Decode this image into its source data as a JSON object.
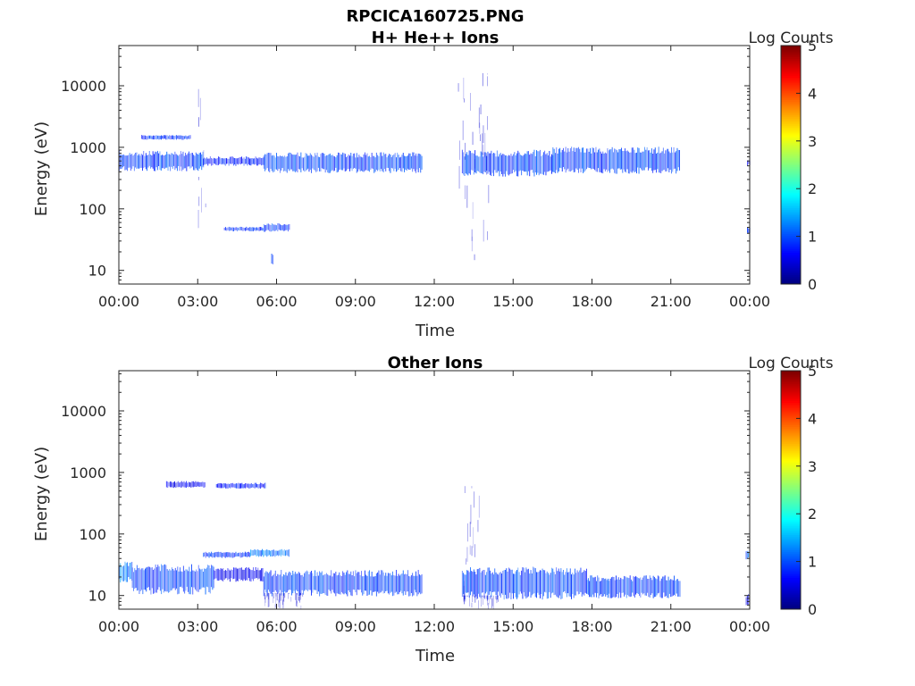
{
  "figure": {
    "title": "RPCICA160725.PNG"
  },
  "chart_data": [
    {
      "type": "heatmap",
      "title": "H+ He++ Ions",
      "xlabel": "Time",
      "ylabel": "Energy (eV)",
      "xticks": [
        "00:00",
        "03:00",
        "06:00",
        "09:00",
        "12:00",
        "15:00",
        "18:00",
        "21:00",
        "00:00"
      ],
      "xlim_hours": [
        0,
        24
      ],
      "yscale": "log",
      "ylim": [
        6,
        45000
      ],
      "yticks": [
        10,
        100,
        1000,
        10000
      ],
      "ytick_labels": [
        "10",
        "100",
        "1000",
        "10000"
      ],
      "colorbar": {
        "label": "Log Counts",
        "range": [
          0,
          5
        ],
        "ticks": [
          "0",
          "1",
          "2",
          "3",
          "4",
          "5"
        ],
        "colormap": "jet"
      },
      "bands": [
        {
          "t0": 0.0,
          "t1": 3.2,
          "elo": 450,
          "ehi": 800,
          "level": 1.0
        },
        {
          "t0": 3.2,
          "t1": 5.5,
          "elo": 520,
          "ehi": 680,
          "level": 0.8
        },
        {
          "t0": 5.5,
          "t1": 11.55,
          "elo": 420,
          "ehi": 750,
          "level": 1.0
        },
        {
          "t0": 13.05,
          "t1": 16.5,
          "elo": 380,
          "ehi": 800,
          "level": 1.0
        },
        {
          "t0": 16.5,
          "t1": 21.35,
          "elo": 420,
          "ehi": 900,
          "level": 1.0
        },
        {
          "t0": 0.85,
          "t1": 2.75,
          "elo": 1350,
          "ehi": 1550,
          "level": 0.9
        },
        {
          "t0": 4.0,
          "t1": 5.5,
          "elo": 44,
          "ehi": 50,
          "level": 0.9
        },
        {
          "t0": 5.5,
          "t1": 6.5,
          "elo": 44,
          "ehi": 56,
          "level": 1.0
        },
        {
          "t0": 5.8,
          "t1": 5.85,
          "elo": 13,
          "ehi": 18,
          "level": 1.0
        },
        {
          "t0": 23.9,
          "t1": 24.0,
          "elo": 40,
          "ehi": 50,
          "level": 1.0
        },
        {
          "t0": 23.9,
          "t1": 24.0,
          "elo": 520,
          "ehi": 600,
          "level": 0.6
        }
      ],
      "streaks": [
        {
          "t0": 3.0,
          "t1": 3.35,
          "elo": 7,
          "ehi": 12000,
          "level": 0.4
        },
        {
          "t0": 12.9,
          "t1": 14.1,
          "elo": 6,
          "ehi": 16000,
          "level": 0.4
        }
      ]
    },
    {
      "type": "heatmap",
      "title": "Other Ions",
      "xlabel": "Time",
      "ylabel": "Energy (eV)",
      "xticks": [
        "00:00",
        "03:00",
        "06:00",
        "09:00",
        "12:00",
        "15:00",
        "18:00",
        "21:00",
        "00:00"
      ],
      "xlim_hours": [
        0,
        24
      ],
      "yscale": "log",
      "ylim": [
        6,
        45000
      ],
      "yticks": [
        10,
        100,
        1000,
        10000
      ],
      "ytick_labels": [
        "10",
        "100",
        "1000",
        "10000"
      ],
      "colorbar": {
        "label": "Log Counts",
        "range": [
          0,
          5
        ],
        "ticks": [
          "0",
          "1",
          "2",
          "3",
          "4",
          "5"
        ],
        "colormap": "jet"
      },
      "bands": [
        {
          "t0": 0.0,
          "t1": 0.5,
          "elo": 18,
          "ehi": 33,
          "level": 1.3
        },
        {
          "t0": 0.5,
          "t1": 3.6,
          "elo": 12,
          "ehi": 28,
          "level": 1.0
        },
        {
          "t0": 3.6,
          "t1": 5.5,
          "elo": 18,
          "ehi": 27,
          "level": 0.6
        },
        {
          "t0": 5.5,
          "t1": 11.55,
          "elo": 11,
          "ehi": 23,
          "level": 1.0
        },
        {
          "t0": 13.05,
          "t1": 17.8,
          "elo": 10,
          "ehi": 25,
          "level": 1.0
        },
        {
          "t0": 17.8,
          "t1": 21.35,
          "elo": 10,
          "ehi": 19,
          "level": 1.0
        },
        {
          "t0": 1.8,
          "t1": 3.3,
          "elo": 580,
          "ehi": 700,
          "level": 0.6
        },
        {
          "t0": 3.7,
          "t1": 5.6,
          "elo": 560,
          "ehi": 660,
          "level": 0.8
        },
        {
          "t0": 3.2,
          "t1": 5.0,
          "elo": 42,
          "ehi": 50,
          "level": 0.9
        },
        {
          "t0": 5.0,
          "t1": 6.5,
          "elo": 44,
          "ehi": 55,
          "level": 1.3
        },
        {
          "t0": 23.85,
          "t1": 24.0,
          "elo": 40,
          "ehi": 52,
          "level": 1.2
        },
        {
          "t0": 23.85,
          "t1": 23.95,
          "elo": 7,
          "ehi": 10,
          "level": 0.6
        }
      ],
      "streaks": [
        {
          "t0": 13.1,
          "t1": 13.7,
          "elo": 7,
          "ehi": 600,
          "level": 0.4
        },
        {
          "t0": 5.5,
          "t1": 7.0,
          "elo": 6,
          "ehi": 11,
          "level": 0.4
        },
        {
          "t0": 13.05,
          "t1": 14.5,
          "elo": 6,
          "ehi": 10,
          "level": 0.4
        }
      ]
    }
  ]
}
